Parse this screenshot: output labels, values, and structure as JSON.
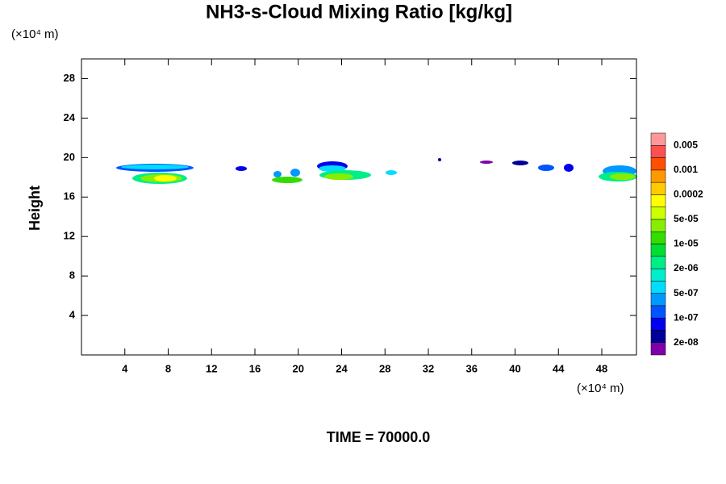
{
  "chart_data": {
    "type": "contour",
    "title": "NH3-s-Cloud Mixing Ratio [kg/kg]",
    "y_unit": "(×10⁴ m)",
    "x_unit": "(×10⁴ m)",
    "ylabel": "Height",
    "footer": "TIME = 70000.0",
    "xlim": [
      0,
      51.2
    ],
    "ylim": [
      0,
      30
    ],
    "xticks": [
      4,
      8,
      12,
      16,
      20,
      24,
      28,
      32,
      36,
      40,
      44,
      48
    ],
    "yticks": [
      4,
      8,
      12,
      16,
      20,
      24,
      28
    ],
    "colorbar": {
      "labels": [
        "2e-08",
        "1e-07",
        "5e-07",
        "2e-06",
        "1e-05",
        "5e-05",
        "0.0002",
        "0.001",
        "0.005"
      ],
      "colors": [
        "#7f00aa",
        "#000099",
        "#0000ee",
        "#0055ff",
        "#0099ff",
        "#00ddff",
        "#00eecc",
        "#00ee88",
        "#00dd33",
        "#33dd00",
        "#88ee00",
        "#ccff00",
        "#ffff00",
        "#ffcc00",
        "#ff9900",
        "#ff5000",
        "#ff5050",
        "#ff9999"
      ]
    }
  }
}
